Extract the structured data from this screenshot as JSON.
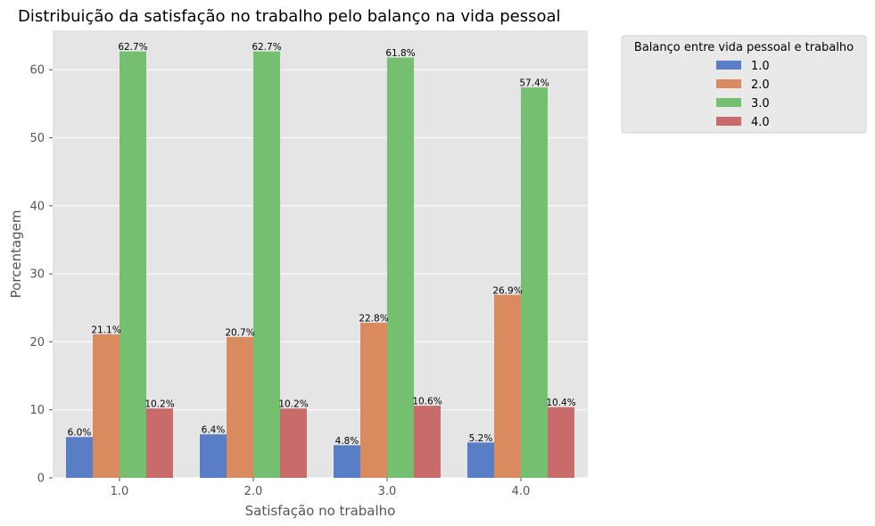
{
  "chart_data": {
    "type": "bar",
    "title": "Distribuição da satisfação no trabalho pelo balanço na vida pessoal",
    "xlabel": "Satisfação no trabalho",
    "ylabel": "Porcentagem",
    "categories": [
      "1.0",
      "2.0",
      "3.0",
      "4.0"
    ],
    "ylim": [
      0,
      65.8
    ],
    "yticks": [
      0,
      10,
      20,
      30,
      40,
      50,
      60
    ],
    "grid": true,
    "legend": {
      "title": "Balanço entre vida pessoal e trabalho",
      "position": "outside-top-right"
    },
    "series": [
      {
        "name": "1.0",
        "color": "#5a7ec6",
        "values": [
          6.0,
          6.4,
          4.8,
          5.2
        ],
        "labels": [
          "6.0%",
          "6.4%",
          "4.8%",
          "5.2%"
        ]
      },
      {
        "name": "2.0",
        "color": "#d98a5e",
        "values": [
          21.1,
          20.7,
          22.8,
          26.9
        ],
        "labels": [
          "21.1%",
          "20.7%",
          "22.8%",
          "26.9%"
        ]
      },
      {
        "name": "3.0",
        "color": "#74bf70",
        "values": [
          62.7,
          62.7,
          61.8,
          57.4
        ],
        "labels": [
          "62.7%",
          "62.7%",
          "61.8%",
          "57.4%"
        ]
      },
      {
        "name": "4.0",
        "color": "#c96b6b",
        "values": [
          10.2,
          10.2,
          10.6,
          10.4
        ],
        "labels": [
          "10.2%",
          "10.2%",
          "10.6%",
          "10.4%"
        ]
      }
    ]
  }
}
